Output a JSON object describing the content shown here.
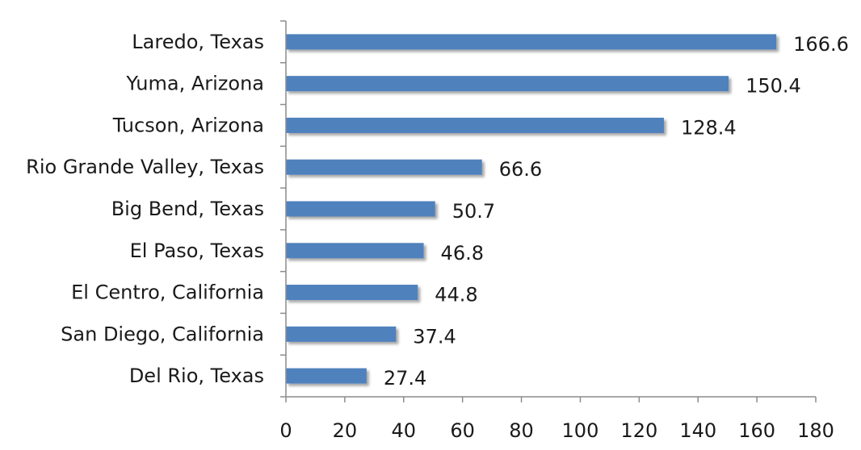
{
  "chart_data": {
    "type": "bar",
    "orientation": "horizontal",
    "categories": [
      "Laredo, Texas",
      "Yuma, Arizona",
      "Tucson, Arizona",
      "Rio Grande Valley, Texas",
      "Big Bend, Texas",
      "El Paso, Texas",
      "El Centro, California",
      "San Diego, California",
      "Del Rio, Texas"
    ],
    "values": [
      166.6,
      150.4,
      128.4,
      66.6,
      50.7,
      46.8,
      44.8,
      37.4,
      27.4
    ],
    "value_labels": [
      "166.6",
      "150.4",
      "128.4",
      "66.6",
      "50.7",
      "46.8",
      "44.8",
      "37.4",
      "27.4"
    ],
    "title": "",
    "xlabel": "",
    "ylabel": "",
    "xlim": [
      0,
      180
    ],
    "x_ticks": [
      "0",
      "20",
      "40",
      "60",
      "80",
      "100",
      "120",
      "140",
      "160",
      "180"
    ],
    "grid": false,
    "legend": "none",
    "bar_color": "#4f81bd"
  }
}
